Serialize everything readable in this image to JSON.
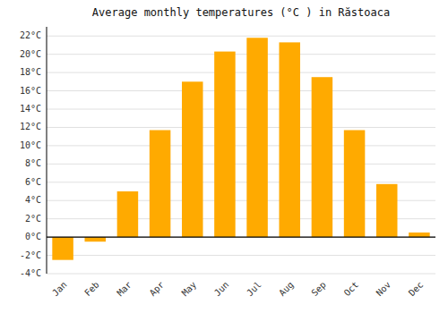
{
  "chart_data": {
    "type": "bar",
    "title": "Average monthly temperatures (°C ) in Răstoaca",
    "categories": [
      "Jan",
      "Feb",
      "Mar",
      "Apr",
      "May",
      "Jun",
      "Jul",
      "Aug",
      "Sep",
      "Oct",
      "Nov",
      "Dec"
    ],
    "values": [
      -2.5,
      -0.5,
      5.0,
      11.7,
      17.0,
      20.3,
      21.8,
      21.3,
      17.5,
      11.7,
      5.8,
      0.5
    ],
    "color": "#FFAA00",
    "ylim": [
      -4,
      23
    ],
    "yticks": [
      {
        "value": -4,
        "label": "-4°C"
      },
      {
        "value": -2,
        "label": "-2°C"
      },
      {
        "value": 0,
        "label": "0°C"
      },
      {
        "value": 2,
        "label": "2°C"
      },
      {
        "value": 4,
        "label": "4°C"
      },
      {
        "value": 6,
        "label": "6°C"
      },
      {
        "value": 8,
        "label": "8°C"
      },
      {
        "value": 10,
        "label": "10°C"
      },
      {
        "value": 12,
        "label": "12°C"
      },
      {
        "value": 14,
        "label": "14°C"
      },
      {
        "value": 16,
        "label": "16°C"
      },
      {
        "value": 18,
        "label": "18°C"
      },
      {
        "value": 20,
        "label": "20°C"
      },
      {
        "value": 22,
        "label": "22°C"
      }
    ],
    "grid": true
  }
}
